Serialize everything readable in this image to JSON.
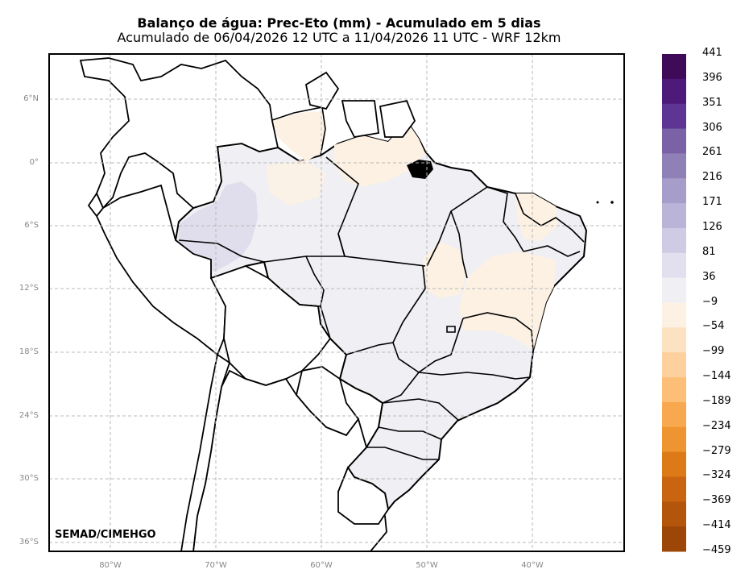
{
  "title": "Balanço de água: Prec-Eto (mm) - Acumulado em 5 dias",
  "subtitle": "Acumulado de 06/04/2026 12 UTC a 11/04/2026 11 UTC - WRF 12km",
  "credit": "SEMAD/CIMEHGO",
  "lat_labels": [
    "6°N",
    "0°",
    "6°S",
    "12°S",
    "18°S",
    "24°S",
    "30°S",
    "36°S"
  ],
  "lon_labels": [
    "80°W",
    "70°W",
    "60°W",
    "50°W",
    "40°W"
  ],
  "colorbar": {
    "labels": [
      "441",
      "396",
      "351",
      "306",
      "261",
      "216",
      "171",
      "126",
      "81",
      "36",
      "−9",
      "−54",
      "−99",
      "−144",
      "−189",
      "−234",
      "−279",
      "−324",
      "−369",
      "−414",
      "−459"
    ],
    "colors": [
      "#3f0a57",
      "#4d1a7a",
      "#5e3592",
      "#7b62a6",
      "#8f80b8",
      "#a69dca",
      "#bab4d8",
      "#cfcbe4",
      "#e2e0ee",
      "#efeff4",
      "#fcf1e3",
      "#fde2c2",
      "#fdd09e",
      "#fdbf78",
      "#f8a84e",
      "#ee9430",
      "#dc7a18",
      "#c96510",
      "#b3560b",
      "#9c4707"
    ]
  }
}
